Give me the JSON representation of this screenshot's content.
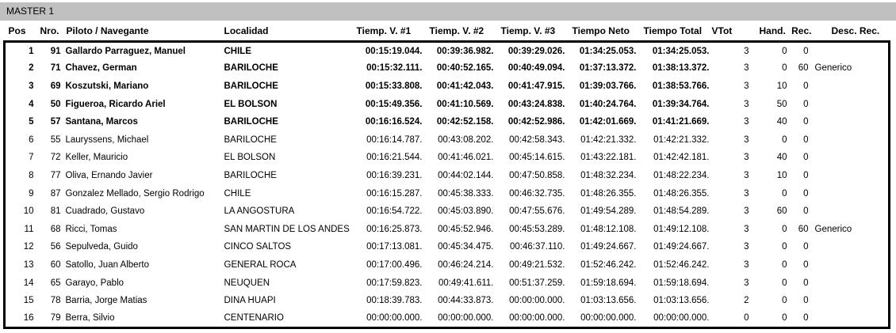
{
  "colors": {
    "titlebar_bg": "#c0c0c0",
    "border": "#000000",
    "text": "#000000",
    "page_bg": "#ffffff"
  },
  "title_bar": {
    "label": "MASTER 1"
  },
  "table": {
    "columns": [
      "Pos",
      "Nro.",
      "Piloto / Navegante",
      "Localidad",
      "Tiemp. V. #1",
      "Tiemp. V. #2",
      "Tiemp. V. #3",
      "Tiempo Neto",
      "Tiempo Total",
      "VTot",
      "Hand.",
      "Rec.",
      "Desc. Rec."
    ],
    "rows": [
      {
        "pos": "1",
        "nro": "91",
        "piloto": "Gallardo Parraguez, Manuel",
        "localidad": "CHILE",
        "t1": "00:15:19.044.",
        "t2": "00:39:36.982.",
        "t3": "00:39:29.026.",
        "neto": "01:34:25.053.",
        "total": "01:34:25.053.",
        "vtot": "3",
        "hand": "0",
        "rec": "0",
        "desc": "",
        "bold": true
      },
      {
        "pos": "2",
        "nro": "71",
        "piloto": "Chavez, German",
        "localidad": "BARILOCHE",
        "t1": "00:15:32.111.",
        "t2": "00:40:52.165.",
        "t3": "00:40:49.094.",
        "neto": "01:37:13.372.",
        "total": "01:38:13.372.",
        "vtot": "3",
        "hand": "0",
        "rec": "60",
        "desc": "Generico",
        "bold": true
      },
      {
        "pos": "3",
        "nro": "69",
        "piloto": "Koszutski, Mariano",
        "localidad": "BARILOCHE",
        "t1": "00:15:33.808.",
        "t2": "00:41:42.043.",
        "t3": "00:41:47.915.",
        "neto": "01:39:03.766.",
        "total": "01:38:53.766.",
        "vtot": "3",
        "hand": "10",
        "rec": "0",
        "desc": "",
        "bold": true
      },
      {
        "pos": "4",
        "nro": "50",
        "piloto": "Figueroa, Ricardo Ariel",
        "localidad": "EL BOLSON",
        "t1": "00:15:49.356.",
        "t2": "00:41:10.569.",
        "t3": "00:43:24.838.",
        "neto": "01:40:24.764.",
        "total": "01:39:34.764.",
        "vtot": "3",
        "hand": "50",
        "rec": "0",
        "desc": "",
        "bold": true
      },
      {
        "pos": "5",
        "nro": "57",
        "piloto": "Santana, Marcos",
        "localidad": "BARILOCHE",
        "t1": "00:16:16.524.",
        "t2": "00:42:52.158.",
        "t3": "00:42:52.986.",
        "neto": "01:42:01.669.",
        "total": "01:41:21.669.",
        "vtot": "3",
        "hand": "40",
        "rec": "0",
        "desc": "",
        "bold": true
      },
      {
        "pos": "6",
        "nro": "55",
        "piloto": "Lauryssens, Michael",
        "localidad": "BARILOCHE",
        "t1": "00:16:14.787.",
        "t2": "00:43:08.202.",
        "t3": "00:42:58.343.",
        "neto": "01:42:21.332.",
        "total": "01:42:21.332.",
        "vtot": "3",
        "hand": "0",
        "rec": "0",
        "desc": "",
        "bold": false
      },
      {
        "pos": "7",
        "nro": "72",
        "piloto": "Keller, Mauricio",
        "localidad": "EL BOLSON",
        "t1": "00:16:21.544.",
        "t2": "00:41:46.021.",
        "t3": "00:45:14.615.",
        "neto": "01:43:22.181.",
        "total": "01:42:42.181.",
        "vtot": "3",
        "hand": "40",
        "rec": "0",
        "desc": "",
        "bold": false
      },
      {
        "pos": "8",
        "nro": "77",
        "piloto": "Oliva, Ernando Javier",
        "localidad": "BARILOCHE",
        "t1": "00:16:39.231.",
        "t2": "00:44:02.144.",
        "t3": "00:47:50.858.",
        "neto": "01:48:32.234.",
        "total": "01:48:22.234.",
        "vtot": "3",
        "hand": "10",
        "rec": "0",
        "desc": "",
        "bold": false
      },
      {
        "pos": "9",
        "nro": "87",
        "piloto": "Gonzalez Mellado, Sergio Rodrigo",
        "localidad": "CHILE",
        "t1": "00:16:15.287.",
        "t2": "00:45:38.333.",
        "t3": "00:46:32.735.",
        "neto": "01:48:26.355.",
        "total": "01:48:26.355.",
        "vtot": "3",
        "hand": "0",
        "rec": "0",
        "desc": "",
        "bold": false
      },
      {
        "pos": "10",
        "nro": "81",
        "piloto": "Cuadrado, Gustavo",
        "localidad": "LA ANGOSTURA",
        "t1": "00:16:54.722.",
        "t2": "00:45:03.890.",
        "t3": "00:47:55.676.",
        "neto": "01:49:54.289.",
        "total": "01:48:54.289.",
        "vtot": "3",
        "hand": "60",
        "rec": "0",
        "desc": "",
        "bold": false
      },
      {
        "pos": "11",
        "nro": "68",
        "piloto": "Ricci, Tomas",
        "localidad": "SAN MARTIN DE LOS ANDES",
        "t1": "00:16:25.873.",
        "t2": "00:45:52.946.",
        "t3": "00:45:53.289.",
        "neto": "01:48:12.108.",
        "total": "01:49:12.108.",
        "vtot": "3",
        "hand": "0",
        "rec": "60",
        "desc": "Generico",
        "bold": false
      },
      {
        "pos": "12",
        "nro": "56",
        "piloto": "Sepulveda, Guido",
        "localidad": "CINCO SALTOS",
        "t1": "00:17:13.081.",
        "t2": "00:45:34.475.",
        "t3": "00:46:37.110.",
        "neto": "01:49:24.667.",
        "total": "01:49:24.667.",
        "vtot": "3",
        "hand": "0",
        "rec": "0",
        "desc": "",
        "bold": false
      },
      {
        "pos": "13",
        "nro": "60",
        "piloto": "Satollo, Juan Alberto",
        "localidad": "GENERAL ROCA",
        "t1": "00:17:00.496.",
        "t2": "00:46:24.214.",
        "t3": "00:49:21.532.",
        "neto": "01:52:46.242.",
        "total": "01:52:46.242.",
        "vtot": "3",
        "hand": "0",
        "rec": "0",
        "desc": "",
        "bold": false
      },
      {
        "pos": "14",
        "nro": "65",
        "piloto": "Garayo, Pablo",
        "localidad": "NEUQUEN",
        "t1": "00:17:59.823.",
        "t2": "00:49:41.611.",
        "t3": "00:51:37.259.",
        "neto": "01:59:18.694.",
        "total": "01:59:18.694.",
        "vtot": "3",
        "hand": "0",
        "rec": "0",
        "desc": "",
        "bold": false
      },
      {
        "pos": "15",
        "nro": "78",
        "piloto": "Barria, Jorge Matias",
        "localidad": "DINA HUAPI",
        "t1": "00:18:39.783.",
        "t2": "00:44:33.873.",
        "t3": "00:00:00.000.",
        "neto": "01:03:13.656.",
        "total": "01:03:13.656.",
        "vtot": "2",
        "hand": "0",
        "rec": "0",
        "desc": "",
        "bold": false
      },
      {
        "pos": "16",
        "nro": "79",
        "piloto": "Berra, Silvio",
        "localidad": "CENTENARIO",
        "t1": "00:00:00.000.",
        "t2": "00:00:00.000.",
        "t3": "00:00:00.000.",
        "neto": "00:00:00.000.",
        "total": "00:00:00.000.",
        "vtot": "0",
        "hand": "0",
        "rec": "0",
        "desc": "",
        "bold": false
      }
    ]
  }
}
